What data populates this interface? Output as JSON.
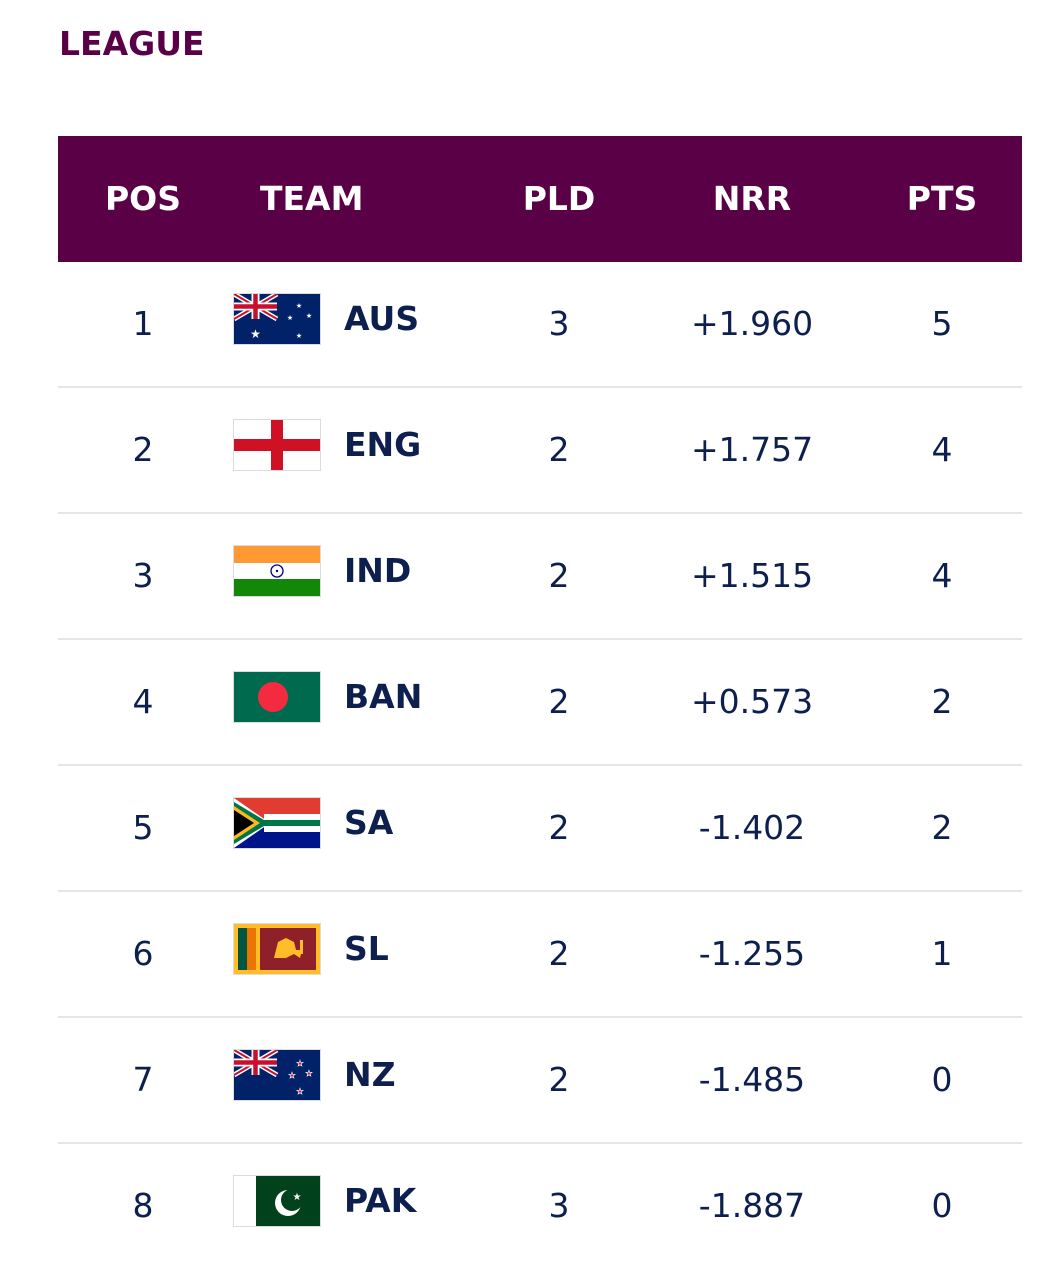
{
  "section_title": "LEAGUE",
  "columns": {
    "pos": "POS",
    "team": "TEAM",
    "pld": "PLD",
    "nrr": "NRR",
    "pts": "PTS"
  },
  "colors": {
    "header_bg": "#5a0047",
    "text": "#0d1f4e"
  },
  "rows": [
    {
      "pos": "1",
      "team": "AUS",
      "flag_icon": "australia-flag-icon",
      "pld": "3",
      "nrr": "+1.960",
      "pts": "5"
    },
    {
      "pos": "2",
      "team": "ENG",
      "flag_icon": "england-flag-icon",
      "pld": "2",
      "nrr": "+1.757",
      "pts": "4"
    },
    {
      "pos": "3",
      "team": "IND",
      "flag_icon": "india-flag-icon",
      "pld": "2",
      "nrr": "+1.515",
      "pts": "4"
    },
    {
      "pos": "4",
      "team": "BAN",
      "flag_icon": "bangladesh-flag-icon",
      "pld": "2",
      "nrr": "+0.573",
      "pts": "2"
    },
    {
      "pos": "5",
      "team": "SA",
      "flag_icon": "south-africa-flag-icon",
      "pld": "2",
      "nrr": "-1.402",
      "pts": "2"
    },
    {
      "pos": "6",
      "team": "SL",
      "flag_icon": "sri-lanka-flag-icon",
      "pld": "2",
      "nrr": "-1.255",
      "pts": "1"
    },
    {
      "pos": "7",
      "team": "NZ",
      "flag_icon": "new-zealand-flag-icon",
      "pld": "2",
      "nrr": "-1.485",
      "pts": "0"
    },
    {
      "pos": "8",
      "team": "PAK",
      "flag_icon": "pakistan-flag-icon",
      "pld": "3",
      "nrr": "-1.887",
      "pts": "0"
    }
  ]
}
